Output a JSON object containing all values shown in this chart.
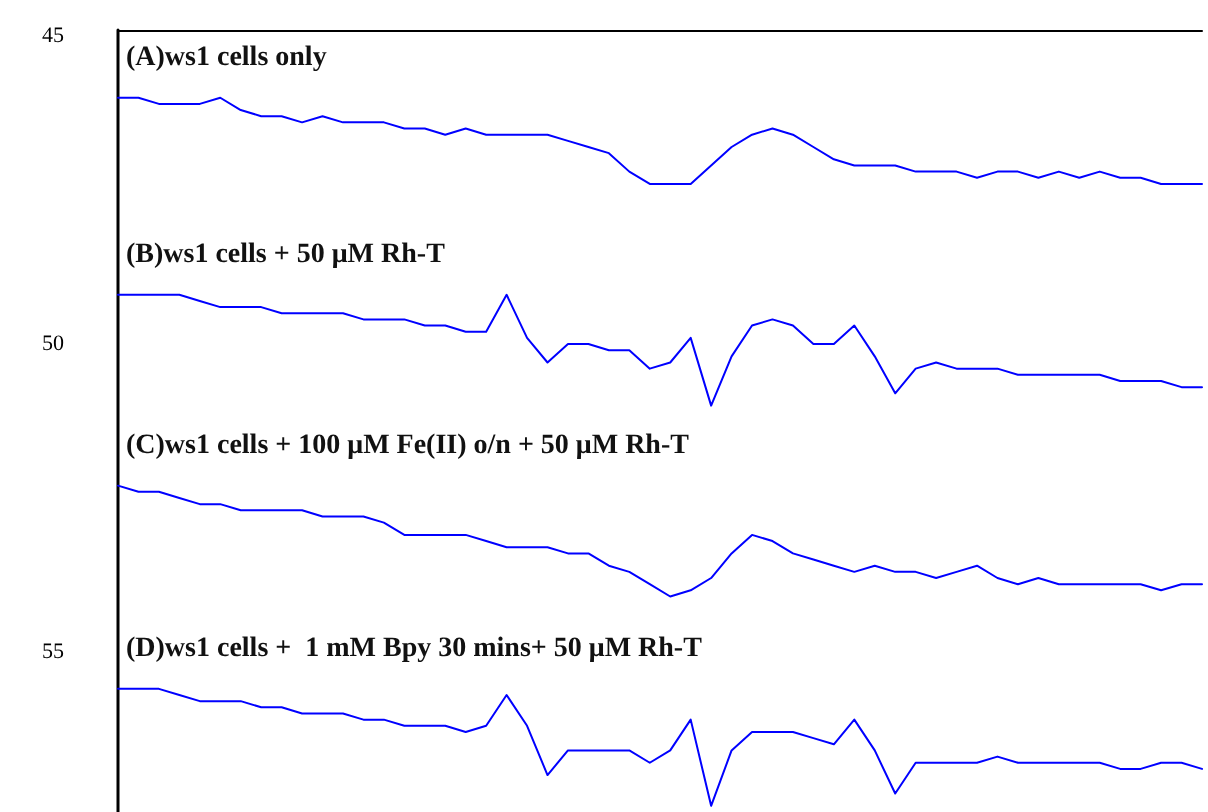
{
  "chart_data": {
    "type": "line",
    "annotations": [
      "(A)ws1 cells only",
      "(B)ws1 cells + 50 μM Rh-T",
      "(C)ws1 cells + 100 μM Fe(II) o/n + 50 μM Rh-T",
      "(D)ws1 cells +  1 mM Bpy 30 mins+ 50 μM Rh-T"
    ],
    "categories": [
      null,
      null,
      null,
      null,
      null,
      null,
      null,
      null,
      null,
      null,
      null,
      null,
      null,
      null,
      null,
      null,
      null,
      null,
      null,
      null,
      null,
      null,
      null,
      null,
      null,
      null,
      null,
      null,
      null,
      null,
      null,
      null,
      null,
      null,
      null,
      null,
      null,
      null,
      null,
      null,
      null,
      null,
      null,
      null,
      null,
      null,
      null,
      null,
      null,
      null,
      null,
      null,
      null,
      null
    ],
    "series": [
      {
        "color": "#0000ff",
        "values": [
          46.0,
          46.0,
          46.1,
          46.1,
          46.1,
          46.0,
          46.2,
          46.3,
          46.3,
          46.4,
          46.3,
          46.4,
          46.4,
          46.4,
          46.5,
          46.5,
          46.6,
          46.5,
          46.6,
          46.6,
          46.6,
          46.6,
          46.7,
          46.8,
          46.9,
          47.2,
          47.4,
          47.4,
          47.4,
          47.1,
          46.8,
          46.6,
          46.5,
          46.6,
          46.8,
          47.0,
          47.1,
          47.1,
          47.1,
          47.2,
          47.2,
          47.2,
          47.3,
          47.2,
          47.2,
          47.3,
          47.2,
          47.3,
          47.2,
          47.3,
          47.3,
          47.4,
          47.4,
          47.4
        ]
      },
      {
        "color": "#0000ff",
        "values": [
          49.2,
          49.2,
          49.2,
          49.2,
          49.3,
          49.4,
          49.4,
          49.4,
          49.5,
          49.5,
          49.5,
          49.5,
          49.6,
          49.6,
          49.6,
          49.7,
          49.7,
          49.8,
          49.8,
          49.2,
          49.9,
          50.3,
          50.0,
          50.0,
          50.1,
          50.1,
          50.4,
          50.3,
          49.9,
          51.0,
          50.2,
          49.7,
          49.6,
          49.7,
          50.0,
          50.0,
          49.7,
          50.2,
          50.8,
          50.4,
          50.3,
          50.4,
          50.4,
          50.4,
          50.5,
          50.5,
          50.5,
          50.5,
          50.5,
          50.6,
          50.6,
          50.6,
          50.7,
          50.7
        ]
      },
      {
        "color": "#0000ff",
        "values": [
          52.3,
          52.4,
          52.4,
          52.5,
          52.6,
          52.6,
          52.7,
          52.7,
          52.7,
          52.7,
          52.8,
          52.8,
          52.8,
          52.9,
          53.1,
          53.1,
          53.1,
          53.1,
          53.2,
          53.3,
          53.3,
          53.3,
          53.4,
          53.4,
          53.6,
          53.7,
          53.9,
          54.1,
          54.0,
          53.8,
          53.4,
          53.1,
          53.2,
          53.4,
          53.5,
          53.6,
          53.7,
          53.6,
          53.7,
          53.7,
          53.8,
          53.7,
          53.6,
          53.8,
          53.9,
          53.8,
          53.9,
          53.9,
          53.9,
          53.9,
          53.9,
          54.0,
          53.9,
          53.9
        ]
      },
      {
        "color": "#0000ff",
        "values": [
          55.6,
          55.6,
          55.6,
          55.7,
          55.8,
          55.8,
          55.8,
          55.9,
          55.9,
          56.0,
          56.0,
          56.0,
          56.1,
          56.1,
          56.2,
          56.2,
          56.2,
          56.3,
          56.2,
          55.7,
          56.2,
          57.0,
          56.6,
          56.6,
          56.6,
          56.6,
          56.8,
          56.6,
          56.1,
          57.5,
          56.6,
          56.3,
          56.3,
          56.3,
          56.4,
          56.5,
          56.1,
          56.6,
          57.3,
          56.8,
          56.8,
          56.8,
          56.8,
          56.7,
          56.8,
          56.8,
          56.8,
          56.8,
          56.8,
          56.9,
          56.9,
          56.8,
          56.8,
          56.9
        ]
      }
    ],
    "ylim": [
      57.6,
      44.9
    ],
    "yticks": [
      45,
      50,
      55
    ],
    "grid": false,
    "marker": "none",
    "line_style": "solid"
  }
}
